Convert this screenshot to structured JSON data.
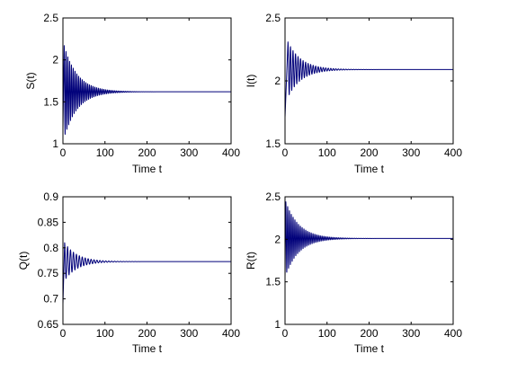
{
  "chart_data": [
    {
      "type": "line",
      "xlabel": "Time t",
      "ylabel": "S(t)",
      "xlim": [
        0,
        400
      ],
      "ylim": [
        1,
        2.5
      ],
      "xticks": [
        0,
        100,
        200,
        300,
        400
      ],
      "yticks": [
        1,
        1.5,
        2,
        2.5
      ],
      "ytick_labels": [
        "1",
        "1.5",
        "2",
        "2.5"
      ],
      "grid": false,
      "color": "#00007a",
      "series": [
        {
          "equilibrium": 1.62,
          "initial": 1.18,
          "first_peak": 2.17,
          "first_peak_t": 3,
          "oscillation_period": 4.3,
          "decay_time": 32,
          "settled_by": 150
        }
      ]
    },
    {
      "type": "line",
      "xlabel": "Time t",
      "ylabel": "I(t)",
      "xlim": [
        0,
        400
      ],
      "ylim": [
        1.5,
        2.5
      ],
      "xticks": [
        0,
        100,
        200,
        300,
        400
      ],
      "yticks": [
        1.5,
        2,
        2.5
      ],
      "ytick_labels": [
        "1.5",
        "2",
        "2.5"
      ],
      "grid": false,
      "color": "#00007a",
      "series": [
        {
          "equilibrium": 2.09,
          "initial": 1.71,
          "first_peak": 2.31,
          "first_peak_t": 7,
          "oscillation_period": 6,
          "decay_time": 32,
          "settled_by": 130
        }
      ]
    },
    {
      "type": "line",
      "xlabel": "Time t",
      "ylabel": "Q(t)",
      "xlim": [
        0,
        400
      ],
      "ylim": [
        0.65,
        0.9
      ],
      "xticks": [
        0,
        100,
        200,
        300,
        400
      ],
      "yticks": [
        0.65,
        0.7,
        0.75,
        0.8,
        0.85,
        0.9
      ],
      "ytick_labels": [
        "0.65",
        "0.7",
        "0.75",
        "0.8",
        "0.85",
        "0.9"
      ],
      "grid": false,
      "color": "#00007a",
      "series": [
        {
          "equilibrium": 0.773,
          "initial": 0.69,
          "first_peak": 0.81,
          "first_peak_t": 4,
          "oscillation_period": 7,
          "decay_time": 30,
          "settled_by": 140
        }
      ]
    },
    {
      "type": "line",
      "xlabel": "Time t",
      "ylabel": "R(t)",
      "xlim": [
        0,
        400
      ],
      "ylim": [
        1,
        2.5
      ],
      "xticks": [
        0,
        100,
        200,
        300,
        400
      ],
      "yticks": [
        1,
        1.5,
        2,
        2.5
      ],
      "ytick_labels": [
        "1",
        "1.5",
        "2",
        "2.5"
      ],
      "grid": false,
      "color": "#00007a",
      "series": [
        {
          "equilibrium": 2.01,
          "initial": 1.55,
          "first_peak": 2.44,
          "first_peak_t": 2,
          "oscillation_period": 4.3,
          "decay_time": 32,
          "settled_by": 150
        }
      ]
    }
  ]
}
